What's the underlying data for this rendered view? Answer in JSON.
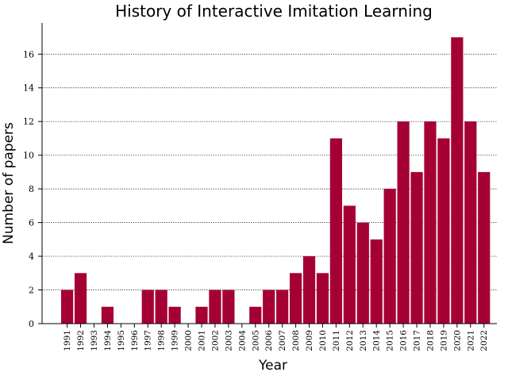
{
  "chart_data": {
    "type": "bar",
    "title": "History of Interactive Imitation Learning",
    "xlabel": "Year",
    "ylabel": "Number of papers",
    "categories": [
      "1991",
      "1992",
      "1993",
      "1994",
      "1995",
      "1996",
      "1997",
      "1998",
      "1999",
      "2000",
      "2001",
      "2002",
      "2003",
      "2004",
      "2005",
      "2006",
      "2007",
      "2008",
      "2009",
      "2010",
      "2011",
      "2012",
      "2013",
      "2014",
      "2015",
      "2016",
      "2017",
      "2018",
      "2019",
      "2020",
      "2021",
      "2022"
    ],
    "values": [
      2,
      3,
      0,
      1,
      0,
      0,
      2,
      2,
      1,
      0,
      1,
      2,
      2,
      0,
      1,
      2,
      2,
      3,
      4,
      3,
      11,
      7,
      6,
      5,
      8,
      12,
      9,
      12,
      11,
      17,
      12,
      9
    ],
    "ylim": [
      0,
      17.85
    ],
    "yticks": [
      0,
      2,
      4,
      6,
      8,
      10,
      12,
      14,
      16
    ],
    "grid": "horizontal dotted",
    "bar_color": "#a50034"
  }
}
